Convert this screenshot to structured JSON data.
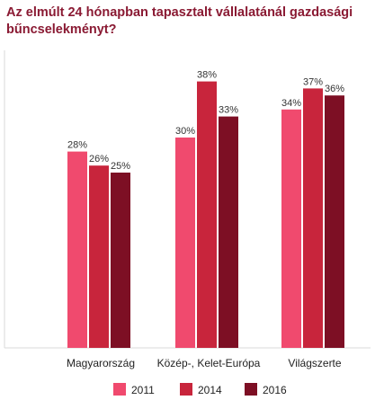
{
  "chart_data": {
    "type": "bar",
    "title": "Az elmúlt 24 hónapban tapasztalt vállalatánál gazdasági bűncselekményt?",
    "categories": [
      "Magyarország",
      "Közép-, Kelet-Európa",
      "Világszerte"
    ],
    "series": [
      {
        "name": "2011",
        "values": [
          28,
          30,
          34
        ],
        "labels": [
          "28%",
          "30%",
          "34%"
        ],
        "color": "#f04a6e"
      },
      {
        "name": "2014",
        "values": [
          26,
          38,
          37
        ],
        "labels": [
          "26%",
          "38%",
          "37%"
        ],
        "color": "#c8253c"
      },
      {
        "name": "2016",
        "values": [
          25,
          33,
          36
        ],
        "labels": [
          "25%",
          "33%",
          "36%"
        ],
        "color": "#7d0f24"
      }
    ],
    "ylim": [
      0,
      40
    ],
    "grid": false,
    "legend_position": "bottom"
  }
}
